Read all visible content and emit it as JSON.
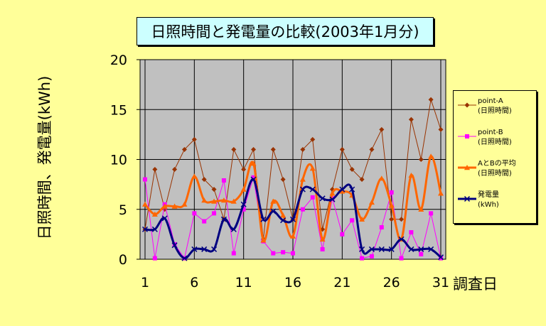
{
  "chart_data": {
    "type": "line",
    "title": "日照時間と発電量の比較(2003年1月分)",
    "xlabel": "調査日",
    "ylabel": "日照時間、発電量(kWh)",
    "x": [
      1,
      2,
      3,
      4,
      5,
      6,
      7,
      8,
      9,
      10,
      11,
      12,
      13,
      14,
      15,
      16,
      17,
      18,
      19,
      20,
      21,
      22,
      23,
      24,
      25,
      26,
      27,
      28,
      29,
      30,
      31
    ],
    "x_ticks": [
      "1",
      "6",
      "11",
      "16",
      "21",
      "26",
      "31"
    ],
    "y_ticks": [
      "0",
      "5",
      "10",
      "15",
      "20"
    ],
    "ylim": [
      0,
      20
    ],
    "xlim": [
      1,
      31
    ],
    "grid": true,
    "legend_position": "right",
    "series": [
      {
        "name": "point-A",
        "name_sub": "(日照時間)",
        "color": "#993300",
        "marker": "diamond",
        "line_width": 1,
        "values": [
          3,
          9,
          5,
          9,
          11,
          12,
          8,
          7,
          4,
          11,
          9,
          11,
          2,
          11,
          8,
          4,
          11,
          12,
          3,
          7,
          11,
          9,
          8,
          11,
          13,
          4,
          4,
          14,
          10,
          16,
          13
        ]
      },
      {
        "name": "point-B",
        "name_sub": "(日照時間)",
        "color": "#ff00ff",
        "marker": "square",
        "line_width": 1,
        "values": [
          8,
          0.1,
          5.5,
          1.5,
          0.1,
          4.6,
          3.8,
          4.6,
          7.9,
          0.6,
          5,
          8.2,
          1.8,
          0.6,
          0.7,
          0.6,
          5,
          6.2,
          1,
          6.1,
          2.5,
          3.9,
          0.1,
          0.3,
          3.2,
          6.7,
          0.1,
          2.7,
          0.5,
          4.6,
          0.1
        ]
      },
      {
        "name": "AとBの平均",
        "name_sub": "(日照時間)",
        "color": "#ff6600",
        "marker": "triangle",
        "line_width": 3,
        "values": [
          5.5,
          4.5,
          5.3,
          5.3,
          5.5,
          8.3,
          5.9,
          5.8,
          5.9,
          5.8,
          7,
          9.6,
          1.9,
          5.8,
          4.4,
          2.3,
          8,
          9.1,
          2,
          6.6,
          6.8,
          6.4,
          4,
          5.7,
          8.1,
          5.4,
          2,
          8.4,
          5,
          10.3,
          6.6
        ]
      },
      {
        "name": "発電量",
        "name_sub": "(kWh)",
        "color": "#000080",
        "marker": "x",
        "line_width": 3,
        "values": [
          3,
          3,
          4.1,
          1.4,
          0.1,
          1,
          1,
          1,
          4,
          3,
          5.5,
          8,
          4,
          4.8,
          3.9,
          4,
          7,
          7,
          6.1,
          6,
          7,
          7,
          1,
          1,
          1,
          1,
          2,
          1,
          1,
          1,
          0.2
        ]
      }
    ]
  },
  "colors": {
    "page_background": "#ffff99",
    "plot_background": "#c0c0c0",
    "title_background": "#ccffff",
    "gridline": "#000000"
  }
}
